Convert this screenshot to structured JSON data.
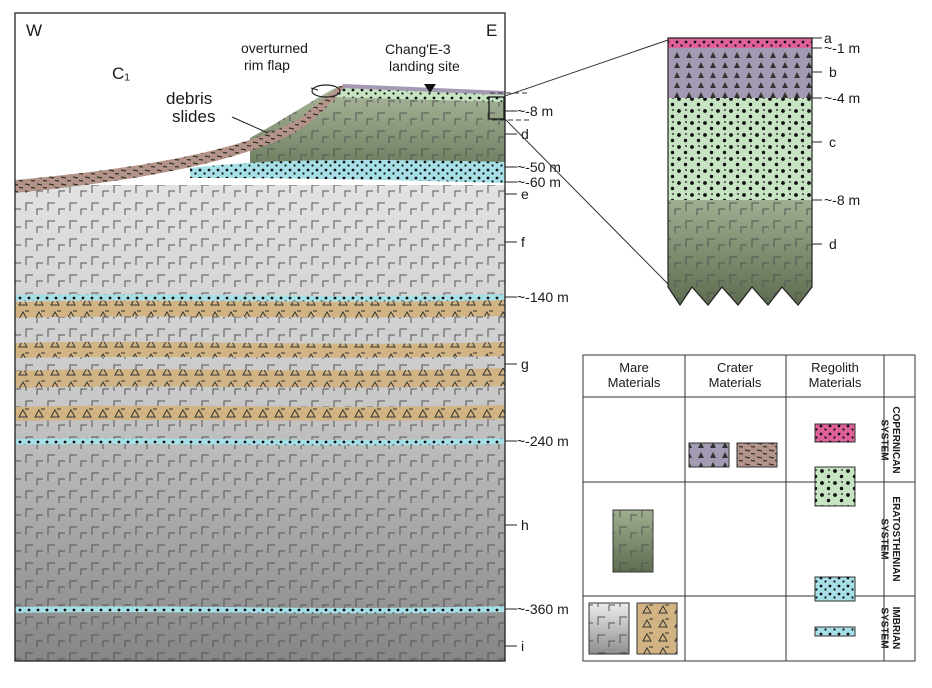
{
  "section": {
    "west": "W",
    "east": "E",
    "crater_label": "C₁",
    "debris_slides": [
      "debris",
      "slides"
    ],
    "rim_flap": [
      "overturned",
      "rim flap"
    ],
    "landing_site": [
      "Chang'E-3",
      "landing site"
    ],
    "depths": [
      "~-8 m",
      "~-50 m",
      "~-60 m",
      "~-140 m",
      "~-240 m",
      "~-360 m"
    ],
    "units": [
      "d",
      "e",
      "f",
      "g",
      "h",
      "i"
    ]
  },
  "inset": {
    "depths": [
      "~-1 m",
      "~-4 m",
      "~-8 m"
    ],
    "units": [
      "a",
      "b",
      "c",
      "d"
    ]
  },
  "legend": {
    "columns": [
      "Mare Materials",
      "Crater Materials",
      "Regolith Materials"
    ],
    "systems": [
      "COPERNICAN SYSTEM",
      "ERATOSTHENIAN SYSTEM",
      "IMBRIAN SYSTEM"
    ]
  },
  "colors": {
    "regolith_pink": "#e0609a",
    "crater_purple": "#a59ab3",
    "regolith_green": "#c6e3c2",
    "regolith_cyan": "#a6e0e6",
    "mare_dark_green": "#6f7c5e",
    "mare_light_gray": "#e3e3e3",
    "mare_dark_gray": "#8a8a8a",
    "debris_brown": "#b4948a",
    "breccia_tan": "#d2b484"
  }
}
